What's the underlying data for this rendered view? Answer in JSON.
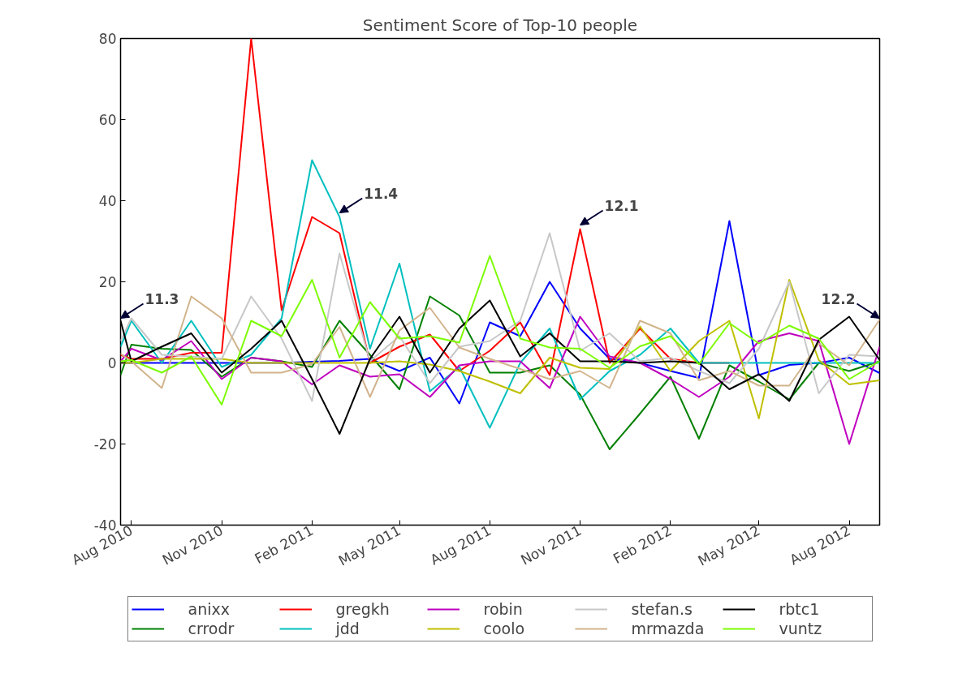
{
  "chart_data": {
    "type": "line",
    "title": "Sentiment Score of Top-10 people",
    "x": [
      "2010-07-21",
      "2010-08-01",
      "2010-09-01",
      "2010-10-01",
      "2010-11-01",
      "2010-12-01",
      "2011-01-01",
      "2011-02-01",
      "2011-03-01",
      "2011-04-01",
      "2011-05-01",
      "2011-06-01",
      "2011-07-01",
      "2011-08-01",
      "2011-09-01",
      "2011-10-01",
      "2011-11-01",
      "2011-12-01",
      "2012-01-01",
      "2012-02-01",
      "2012-03-01",
      "2012-04-01",
      "2012-05-01",
      "2012-06-01",
      "2012-07-01",
      "2012-08-01",
      "2012-09-01"
    ],
    "series": [
      {
        "name": "anixx",
        "color": "#0000ff",
        "values": [
          0,
          0,
          0,
          0,
          0,
          0,
          0,
          0.3,
          0.5,
          1,
          -2,
          1.3,
          -10,
          10,
          6.6,
          20,
          8.5,
          1,
          0,
          -2,
          -3.7,
          35,
          -3,
          -0.5,
          0,
          1.3,
          -2.5
        ]
      },
      {
        "name": "crrodr",
        "color": "#008000",
        "values": [
          -3,
          4.5,
          3.5,
          3.2,
          -3.4,
          1.3,
          0.4,
          -1,
          10.4,
          2,
          -6.5,
          16.4,
          11.7,
          -2.4,
          -2.4,
          -0.6,
          -7.8,
          -21.3,
          -12.5,
          -3.4,
          -18.7,
          -0.6,
          -4.6,
          -9,
          0,
          -2,
          0.4
        ]
      },
      {
        "name": "gregkh",
        "color": "#ff0000",
        "values": [
          2,
          1,
          1,
          2.5,
          2.5,
          80,
          13,
          36,
          32,
          0,
          4,
          7,
          -2,
          3,
          10,
          -3,
          33,
          0,
          8.5,
          1,
          0,
          0,
          null,
          null,
          null,
          null,
          null
        ]
      },
      {
        "name": "jdd",
        "color": "#00bfbf",
        "values": [
          4,
          10.4,
          0,
          10.4,
          -1,
          2,
          11,
          50,
          36,
          3.5,
          24.5,
          -7,
          -1,
          -16,
          0,
          8.5,
          -9,
          -2,
          2,
          8.5,
          0,
          0,
          0,
          0,
          0,
          0,
          0
        ]
      },
      {
        "name": "robin",
        "color": "#bf00bf",
        "values": [
          0.4,
          3.5,
          0.7,
          5.4,
          -4,
          1.3,
          0.4,
          -5.3,
          -0.6,
          -3.4,
          -2.8,
          -8.4,
          -0.6,
          0.4,
          0.4,
          -6.2,
          11.4,
          1.6,
          0,
          -4,
          -8.4,
          -3.4,
          5.4,
          7.3,
          5.4,
          -20,
          4
        ]
      },
      {
        "name": "coolo",
        "color": "#bfbf00",
        "values": [
          0,
          0,
          1,
          1,
          1,
          0,
          0,
          0,
          0,
          0,
          0.4,
          -0.4,
          -2,
          -4.6,
          -7.5,
          1.3,
          -1.2,
          -1.5,
          9,
          -2,
          5.4,
          10.4,
          -13.7,
          20.5,
          0.7,
          -5.3,
          -4.3
        ]
      },
      {
        "name": "stefan.s",
        "color": "#c8c8c8",
        "values": [
          5.4,
          11,
          2,
          1.6,
          1,
          16.4,
          6,
          -9.4,
          27,
          0.4,
          6.6,
          -5,
          4,
          5.4,
          10.4,
          32,
          3,
          7.3,
          0.4,
          1.3,
          -2,
          -5,
          3.5,
          20,
          -7.5,
          2,
          1.6
        ]
      },
      {
        "name": "mrmazda",
        "color": "#d2b48c",
        "values": [
          2.3,
          0.4,
          -6.2,
          16.4,
          11,
          -2.4,
          -2.4,
          -0.3,
          8.9,
          -8.4,
          8,
          13.6,
          3.8,
          1,
          -1.5,
          -4,
          -2,
          -6.2,
          10.4,
          7.3,
          -4.3,
          -2,
          -5.6,
          -5.6,
          4.8,
          -0.6,
          10.7
        ]
      },
      {
        "name": "rbtc1",
        "color": "#000000",
        "values": [
          10.4,
          0.4,
          4,
          7.3,
          -2.4,
          3.5,
          10.4,
          -4,
          -17.5,
          1,
          11.4,
          -2.4,
          8.5,
          15.4,
          1.6,
          7.3,
          0.4,
          0.4,
          0,
          0.4,
          0,
          -6.5,
          -2.8,
          -9.4,
          5.7,
          11.4,
          0.7
        ]
      },
      {
        "name": "vuntz",
        "color": "#7cfc00",
        "values": [
          0.4,
          0.7,
          -2.4,
          1.6,
          -10.3,
          10.4,
          6.6,
          20.5,
          1.3,
          15,
          6,
          6.6,
          5,
          26.4,
          6,
          3.8,
          3.5,
          -1.2,
          4.1,
          6.6,
          -0.3,
          9.8,
          4.8,
          9.2,
          6,
          -4,
          0.4
        ]
      }
    ],
    "xlim": [
      "2010-07-21",
      "2012-09-01"
    ],
    "xticks": [
      {
        "value": "2010-08-01",
        "label": "Aug 2010"
      },
      {
        "value": "2010-11-01",
        "label": "Nov 2010"
      },
      {
        "value": "2011-02-01",
        "label": "Feb 2011"
      },
      {
        "value": "2011-05-01",
        "label": "May 2011"
      },
      {
        "value": "2011-08-01",
        "label": "Aug 2011"
      },
      {
        "value": "2011-11-01",
        "label": "Nov 2011"
      },
      {
        "value": "2012-02-01",
        "label": "Feb 2012"
      },
      {
        "value": "2012-05-01",
        "label": "May 2012"
      },
      {
        "value": "2012-08-01",
        "label": "Aug 2012"
      }
    ],
    "ylim": [
      -40,
      80
    ],
    "yticks": [
      -40,
      -20,
      0,
      20,
      40,
      60,
      80
    ],
    "grid": false,
    "legend": "bottom",
    "line_style": "solid",
    "annotations": [
      {
        "text": "11.3",
        "x": "2010-07-21",
        "y": 11
      },
      {
        "text": "11.4",
        "x": "2011-03-01",
        "y": 37
      },
      {
        "text": "12.1",
        "x": "2011-11-01",
        "y": 34
      },
      {
        "text": "12.2",
        "x": "2012-09-01",
        "y": 11
      }
    ]
  }
}
